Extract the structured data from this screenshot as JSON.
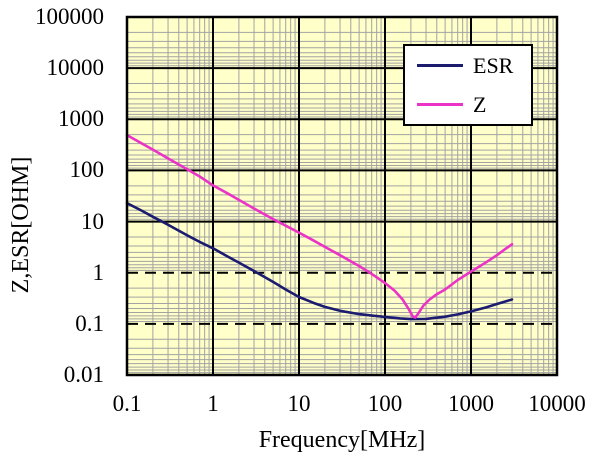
{
  "chart_data": {
    "type": "line",
    "title": "",
    "xlabel": "Frequency[MHz]",
    "ylabel": "Z,ESR[OHM]",
    "x_scale": "log",
    "y_scale": "log",
    "xlim": [
      0.1,
      10000
    ],
    "ylim": [
      0.01,
      100000
    ],
    "x_tick_values": [
      0.1,
      1,
      10,
      100,
      1000,
      10000
    ],
    "x_tick_labels": [
      "0.1",
      "1",
      "10",
      "100",
      "1000",
      "10000"
    ],
    "y_tick_values": [
      100000,
      10000,
      1000,
      100,
      10,
      1,
      0.1,
      0.01
    ],
    "y_tick_labels": [
      "100000",
      "10000",
      "1000",
      "100",
      "10",
      "1",
      "0.1",
      "0.01"
    ],
    "grid": {
      "minor_log_gridlines": true,
      "major_gridlines": true
    },
    "legend_position": "top-right-inside",
    "legend_entries": [
      "ESR",
      "Z"
    ],
    "series": [
      {
        "name": "ESR",
        "color": "#1b1b70",
        "points": [
          [
            0.1,
            23
          ],
          [
            0.15,
            16.2
          ],
          [
            0.2,
            12.4
          ],
          [
            0.3,
            8.7
          ],
          [
            0.5,
            5.4
          ],
          [
            0.7,
            4.0
          ],
          [
            1,
            3.0
          ],
          [
            1.5,
            2.05
          ],
          [
            2,
            1.58
          ],
          [
            3,
            1.08
          ],
          [
            5,
            0.66
          ],
          [
            7,
            0.47
          ],
          [
            10,
            0.335
          ],
          [
            15,
            0.255
          ],
          [
            20,
            0.215
          ],
          [
            30,
            0.18
          ],
          [
            50,
            0.155
          ],
          [
            70,
            0.145
          ],
          [
            100,
            0.137
          ],
          [
            150,
            0.128
          ],
          [
            200,
            0.124
          ],
          [
            300,
            0.125
          ],
          [
            500,
            0.138
          ],
          [
            700,
            0.153
          ],
          [
            1000,
            0.175
          ],
          [
            1500,
            0.21
          ],
          [
            2000,
            0.245
          ],
          [
            3000,
            0.3
          ]
        ]
      },
      {
        "name": "Z",
        "color": "#ec33c7",
        "points": [
          [
            0.1,
            490
          ],
          [
            0.15,
            335
          ],
          [
            0.2,
            255
          ],
          [
            0.3,
            172
          ],
          [
            0.5,
            105
          ],
          [
            0.7,
            76
          ],
          [
            1,
            51
          ],
          [
            1.5,
            35
          ],
          [
            2,
            26.5
          ],
          [
            3,
            18
          ],
          [
            5,
            11.2
          ],
          [
            7,
            8.3
          ],
          [
            10,
            6.1
          ],
          [
            15,
            4.2
          ],
          [
            20,
            3.2
          ],
          [
            30,
            2.2
          ],
          [
            50,
            1.35
          ],
          [
            70,
            0.95
          ],
          [
            100,
            0.63
          ],
          [
            130,
            0.44
          ],
          [
            160,
            0.3
          ],
          [
            190,
            0.19
          ],
          [
            210,
            0.14
          ],
          [
            225,
            0.133
          ],
          [
            250,
            0.17
          ],
          [
            280,
            0.23
          ],
          [
            330,
            0.3
          ],
          [
            400,
            0.38
          ],
          [
            500,
            0.47
          ],
          [
            700,
            0.72
          ],
          [
            1000,
            1.05
          ],
          [
            1500,
            1.6
          ],
          [
            2000,
            2.2
          ],
          [
            2500,
            2.9
          ],
          [
            3000,
            3.6
          ]
        ]
      }
    ]
  },
  "colors": {
    "page_bg": "#ffffff",
    "plot_bg": "#ffffc9",
    "minor_grid": "#a3a3a3",
    "major_grid": "#000000",
    "axis_border": "#000000",
    "text": "#000000",
    "legend_bg": "#ffffff",
    "legend_border": "#000000"
  }
}
